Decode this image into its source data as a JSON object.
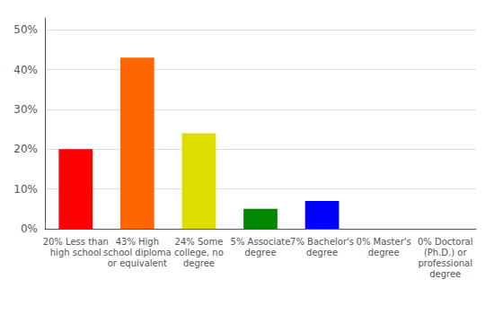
{
  "chart_data": {
    "type": "bar",
    "categories": [
      "20% Less than\nhigh school",
      "43% High\nschool diploma\nor equivalent",
      "24% Some\ncollege, no\ndegree",
      "5% Associate\ndegree",
      "7% Bachelor's\ndegree",
      "0% Master's\ndegree",
      "0% Doctoral\n(Ph.D.) or\nprofessional\ndegree"
    ],
    "values": [
      20,
      43,
      24,
      5,
      7,
      0,
      0
    ],
    "colors": [
      "#ff0000",
      "#ff6600",
      "#dddd00",
      "#008800",
      "#0000ff",
      "#aa00cc",
      "#ff44cc"
    ],
    "ylim": [
      0,
      53
    ],
    "yticks": [
      {
        "value": 0,
        "label": "0%"
      },
      {
        "value": 10,
        "label": "10%"
      },
      {
        "value": 20,
        "label": "20%"
      },
      {
        "value": 30,
        "label": "30%"
      },
      {
        "value": 40,
        "label": "40%"
      },
      {
        "value": 50,
        "label": "50%"
      }
    ],
    "grid": true
  }
}
